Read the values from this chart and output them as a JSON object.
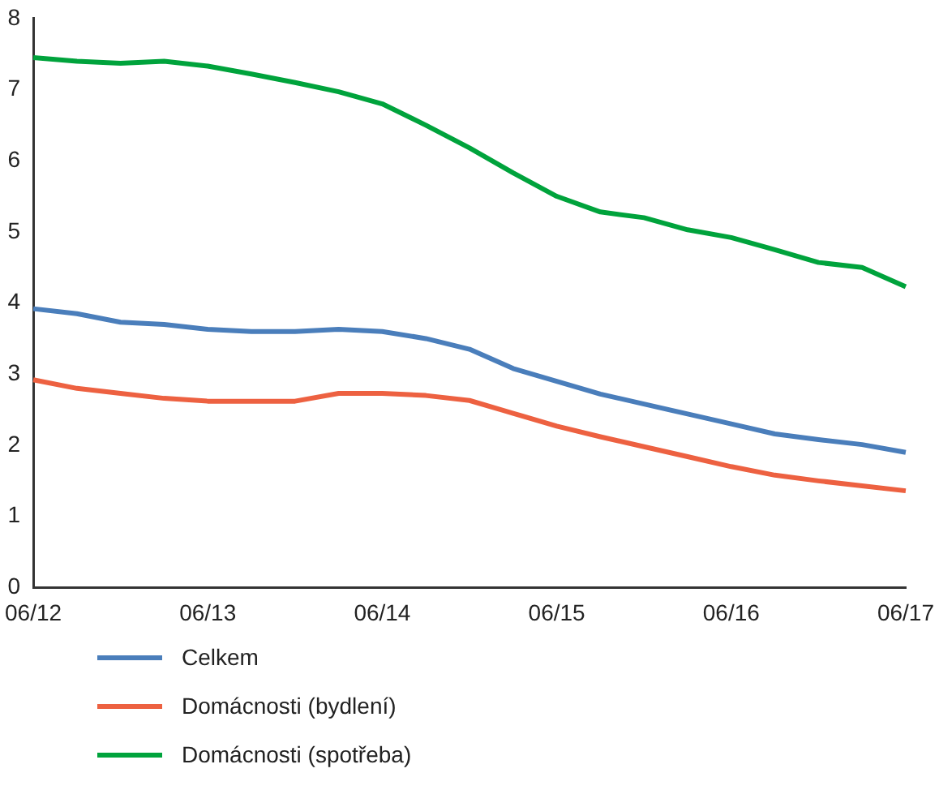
{
  "chart_data": {
    "type": "line",
    "categories": [
      "06/12",
      null,
      null,
      null,
      "06/13",
      null,
      null,
      null,
      "06/14",
      null,
      null,
      null,
      "06/15",
      null,
      null,
      null,
      "06/16",
      null,
      null,
      null,
      "06/17"
    ],
    "series": [
      {
        "name": "Celkem",
        "color": "#4a7ebb",
        "values": [
          3.92,
          3.85,
          3.73,
          3.7,
          3.63,
          3.6,
          3.6,
          3.63,
          3.6,
          3.5,
          3.35,
          3.08,
          2.9,
          2.72,
          2.58,
          2.44,
          2.3,
          2.16,
          2.08,
          2.01,
          1.9
        ]
      },
      {
        "name": "Domácnosti (bydlení)",
        "color": "#ed6141",
        "values": [
          2.92,
          2.8,
          2.73,
          2.66,
          2.62,
          2.62,
          2.62,
          2.73,
          2.73,
          2.7,
          2.63,
          2.45,
          2.27,
          2.12,
          1.98,
          1.84,
          1.7,
          1.58,
          1.5,
          1.43,
          1.36
        ]
      },
      {
        "name": "Domácnosti (spotřeba)",
        "color": "#00a33c",
        "values": [
          7.45,
          7.4,
          7.37,
          7.4,
          7.33,
          7.22,
          7.1,
          6.97,
          6.8,
          6.5,
          6.18,
          5.83,
          5.5,
          5.28,
          5.2,
          5.03,
          4.92,
          4.75,
          4.57,
          4.5,
          4.23
        ]
      }
    ],
    "ylim": [
      0,
      8
    ],
    "yticks": [
      0,
      1,
      2,
      3,
      4,
      5,
      6,
      7,
      8
    ],
    "grid": false,
    "legend": "bottom",
    "marker": "none",
    "line_style": "solid"
  }
}
